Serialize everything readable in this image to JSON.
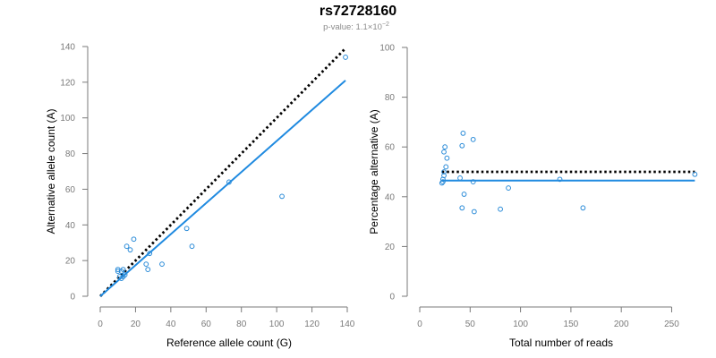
{
  "title": "rs72728160",
  "subtitle": {
    "prefix": "p-value: 1.1×10",
    "exponent": "−2"
  },
  "colors": {
    "points": "#2a8bd8",
    "fit_line": "#1f8ae0",
    "reference_line": "#000000"
  },
  "chart_data": [
    {
      "type": "scatter",
      "xlabel": "Reference allele count (G)",
      "ylabel": "Alternative allele count (A)",
      "xlim": [
        0,
        140
      ],
      "ylim": [
        0,
        140
      ],
      "xticks": [
        0,
        20,
        40,
        60,
        80,
        100,
        120,
        140
      ],
      "yticks": [
        0,
        20,
        40,
        60,
        80,
        100,
        120,
        140
      ],
      "points": [
        {
          "x": 10,
          "y": 14
        },
        {
          "x": 10,
          "y": 15
        },
        {
          "x": 11,
          "y": 11
        },
        {
          "x": 12,
          "y": 10
        },
        {
          "x": 12,
          "y": 14
        },
        {
          "x": 13,
          "y": 11
        },
        {
          "x": 13,
          "y": 15
        },
        {
          "x": 14,
          "y": 12
        },
        {
          "x": 15,
          "y": 28
        },
        {
          "x": 17,
          "y": 26
        },
        {
          "x": 19,
          "y": 32
        },
        {
          "x": 26,
          "y": 18
        },
        {
          "x": 27,
          "y": 15
        },
        {
          "x": 28,
          "y": 24
        },
        {
          "x": 35,
          "y": 18
        },
        {
          "x": 49,
          "y": 38
        },
        {
          "x": 52,
          "y": 28
        },
        {
          "x": 73,
          "y": 64
        },
        {
          "x": 103,
          "y": 56
        },
        {
          "x": 139,
          "y": 134
        }
      ],
      "reference_line": {
        "style": "dotted",
        "from": [
          0,
          0
        ],
        "to": [
          139,
          139
        ]
      },
      "fit_line": {
        "style": "solid",
        "from": [
          0,
          0
        ],
        "to": [
          139,
          121
        ]
      }
    },
    {
      "type": "scatter",
      "xlabel": "Total number of reads",
      "ylabel": "Percentage alternative (A)",
      "xlim": [
        0,
        270
      ],
      "ylim": [
        0,
        100
      ],
      "xticks": [
        0,
        50,
        100,
        150,
        200,
        250
      ],
      "yticks": [
        0,
        20,
        40,
        60,
        80,
        100
      ],
      "points": [
        {
          "x": 22,
          "y": 45.5
        },
        {
          "x": 23,
          "y": 46
        },
        {
          "x": 23,
          "y": 47
        },
        {
          "x": 24,
          "y": 48.5
        },
        {
          "x": 24,
          "y": 50
        },
        {
          "x": 24,
          "y": 58
        },
        {
          "x": 25,
          "y": 60
        },
        {
          "x": 26,
          "y": 52
        },
        {
          "x": 27,
          "y": 55.5
        },
        {
          "x": 40,
          "y": 47.5
        },
        {
          "x": 42,
          "y": 35.5
        },
        {
          "x": 42,
          "y": 60.5
        },
        {
          "x": 43,
          "y": 65.5
        },
        {
          "x": 44,
          "y": 41
        },
        {
          "x": 53,
          "y": 63
        },
        {
          "x": 53,
          "y": 46
        },
        {
          "x": 54,
          "y": 34
        },
        {
          "x": 80,
          "y": 35
        },
        {
          "x": 88,
          "y": 43.5
        },
        {
          "x": 139,
          "y": 47
        },
        {
          "x": 162,
          "y": 35.5
        },
        {
          "x": 273,
          "y": 49
        }
      ],
      "reference_line": {
        "style": "dotted",
        "from": [
          22,
          50
        ],
        "to": [
          273,
          50
        ]
      },
      "fit_line": {
        "style": "solid",
        "from": [
          22,
          46.5
        ],
        "to": [
          273,
          46.5
        ]
      }
    }
  ]
}
